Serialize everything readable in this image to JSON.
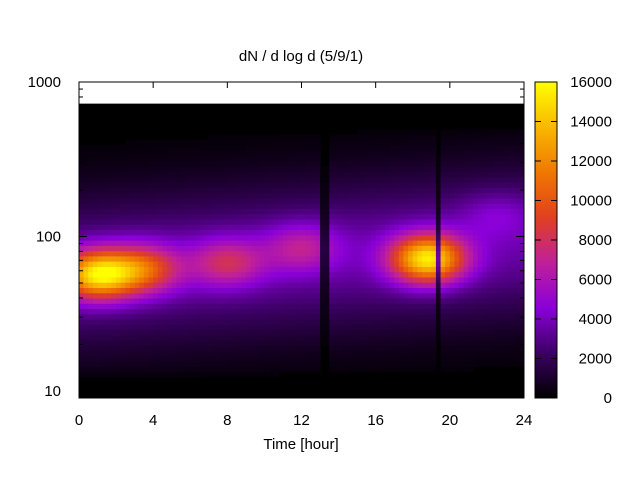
{
  "chart_data": {
    "type": "heatmap",
    "title": "dN / d log d (5/9/1)",
    "xlabel": "Time [hour]",
    "ylabel": "",
    "xlim": [
      0,
      24
    ],
    "ylim": [
      9,
      1000
    ],
    "y_scale": "log",
    "x_ticks": [
      "0",
      "4",
      "8",
      "12",
      "16",
      "20",
      "24"
    ],
    "y_ticks": [
      "10",
      "100",
      "1000"
    ],
    "colorbar": {
      "range": [
        0,
        16000
      ],
      "ticks": [
        "0",
        "2000",
        "4000",
        "6000",
        "8000",
        "10000",
        "12000",
        "14000",
        "16000"
      ],
      "palette": [
        "#000000",
        "#3c0064",
        "#8a00d8",
        "#c0209a",
        "#e04020",
        "#f07800",
        "#f8b800",
        "#ffff00"
      ]
    },
    "features": [
      {
        "x": 1.0,
        "y": 57,
        "value": 14500
      },
      {
        "x": 3.5,
        "y": 62,
        "value": 9500
      },
      {
        "x": 8.0,
        "y": 68,
        "value": 7500
      },
      {
        "x": 12.0,
        "y": 85,
        "value": 6500
      },
      {
        "x": 18.8,
        "y": 72,
        "value": 15000
      },
      {
        "x": 22.5,
        "y": 140,
        "value": 4500
      }
    ],
    "gaps": [
      {
        "x_start": 12.9,
        "x_end": 13.4
      },
      {
        "x_start": 19.2,
        "x_end": 19.6
      }
    ]
  }
}
